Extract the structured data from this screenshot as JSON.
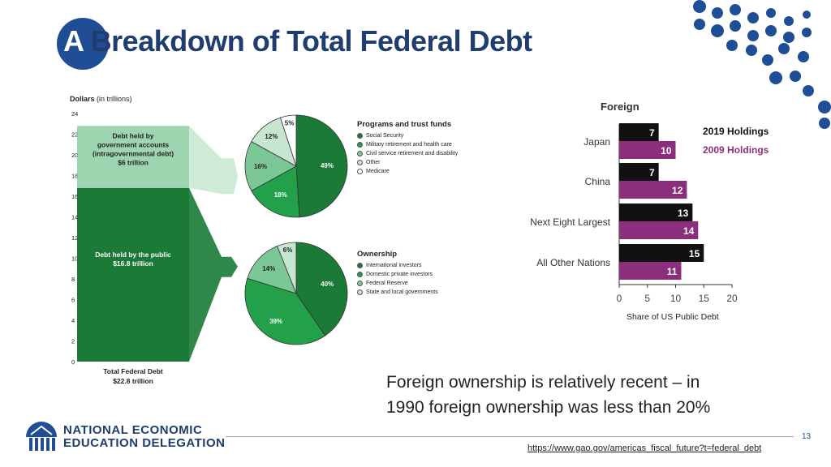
{
  "title": "A Breakdown of Total Federal Debt",
  "title_first_letter": "A",
  "title_rest": " Breakdown of Total Federal Debt",
  "colors": {
    "title": "#1f3d6f",
    "accent_dot": "#1f4e96",
    "dark_green": "#1a7a36",
    "mid_green": "#22a04a",
    "light_green": "#7cc796",
    "pale_green": "#c7e6cf",
    "bar_2019": "#111111",
    "bar_2009": "#8b2f7d"
  },
  "chart_data": [
    {
      "type": "bar",
      "title": "",
      "ylabel_bold": "Dollars",
      "ylabel_rest": " (in trillions)",
      "yticks": [
        0,
        2,
        4,
        6,
        8,
        10,
        12,
        14,
        16,
        18,
        20,
        22,
        24
      ],
      "ylim": [
        0,
        24
      ],
      "segments": [
        {
          "name": "Debt held by the public",
          "value": 16.8,
          "label_lines": [
            "Debt held by the public",
            "$16.8 trillion"
          ]
        },
        {
          "name": "Debt held by government accounts (intragovernmental debt)",
          "value": 6.0,
          "label_lines": [
            "Debt held by",
            "government accounts",
            "(intragovernmental debt)",
            "$6 trillion"
          ]
        }
      ],
      "total_label_lines": [
        "Total Federal Debt",
        "$22.8 trillion"
      ]
    },
    {
      "type": "pie",
      "legend_title": "Programs and trust funds",
      "slices": [
        {
          "name": "Social Security",
          "value": 49,
          "label": "49%"
        },
        {
          "name": "Military retirement  and health care",
          "value": 18,
          "label": "18%"
        },
        {
          "name": "Civil service retirement and disability",
          "value": 16,
          "label": "16%"
        },
        {
          "name": "Other",
          "value": 12,
          "label": "12%"
        },
        {
          "name": "Medicare",
          "value": 5,
          "label": "5%"
        }
      ]
    },
    {
      "type": "pie",
      "legend_title": "Ownership",
      "slices": [
        {
          "name": "International investors",
          "value": 40,
          "label": "40%"
        },
        {
          "name": "Domestic private investors",
          "value": 39,
          "label": "39%"
        },
        {
          "name": "Federal Reserve",
          "value": 14,
          "label": "14%"
        },
        {
          "name": "State and local governments",
          "value": 6,
          "label": "6%"
        }
      ]
    },
    {
      "type": "bar",
      "orientation": "horizontal",
      "title": "Foreign",
      "xlabel": "Share of US Public Debt",
      "categories": [
        "Japan",
        "China",
        "Next Eight Largest",
        "All Other Nations"
      ],
      "series": [
        {
          "name": "2019 Holdings",
          "values": [
            7,
            7,
            13,
            15
          ]
        },
        {
          "name": "2009 Holdings",
          "values": [
            10,
            12,
            14,
            11
          ]
        }
      ],
      "xticks": [
        0,
        5,
        10,
        15,
        20
      ],
      "xlim": [
        0,
        20
      ]
    }
  ],
  "caption_lines": [
    "Foreign ownership is relatively recent – in",
    "1990 foreign ownership was less than 20%"
  ],
  "page_number": "13",
  "source_url": "https://www.gao.gov/americas_fiscal_future?t=federal_debt",
  "logo": {
    "line1": "NATIONAL ECONOMIC",
    "line2": "EDUCATION DELEGATION"
  }
}
